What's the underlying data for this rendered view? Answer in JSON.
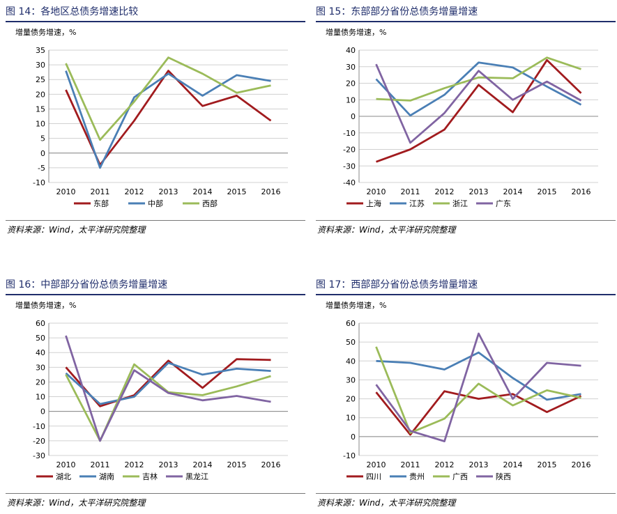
{
  "chart_data": [
    {
      "type": "line",
      "panel_title": "图 14：各地区总债务增速比较",
      "ylabel": "增量债务增速，%",
      "source": "资料来源：Wind，太平洋研究院整理",
      "x": [
        "2010",
        "2011",
        "2012",
        "2013",
        "2014",
        "2015",
        "2016"
      ],
      "ylim": [
        -10,
        35
      ],
      "yticks": [
        -10,
        -5,
        0,
        5,
        10,
        15,
        20,
        25,
        30,
        35
      ],
      "grid": true,
      "series": [
        {
          "name": "东部",
          "color": "#a11b1e",
          "values": [
            21.5,
            -4,
            11,
            28,
            16,
            19.5,
            11
          ]
        },
        {
          "name": "中部",
          "color": "#4a7fb5",
          "values": [
            28,
            -5,
            19,
            27,
            19.5,
            26.5,
            24.5
          ]
        },
        {
          "name": "西部",
          "color": "#9bbb59",
          "values": [
            30.5,
            4.5,
            17.5,
            32.5,
            27,
            20.5,
            23
          ]
        }
      ]
    },
    {
      "type": "line",
      "panel_title": "图 15：东部部分省份总债务增量增速",
      "ylabel": "增量债务增速，%",
      "source": "资料来源：Wind，太平洋研究院整理",
      "x": [
        "2010",
        "2011",
        "2012",
        "2013",
        "2014",
        "2015",
        "2016"
      ],
      "ylim": [
        -40,
        40
      ],
      "yticks": [
        -40,
        -30,
        -20,
        -10,
        0,
        10,
        20,
        30,
        40
      ],
      "grid": true,
      "series": [
        {
          "name": "上海",
          "color": "#a11b1e",
          "values": [
            -27.5,
            -20,
            -8,
            19,
            2.5,
            34,
            14
          ]
        },
        {
          "name": "江苏",
          "color": "#4a7fb5",
          "values": [
            22.5,
            0.5,
            13,
            32.5,
            29.5,
            18,
            7
          ]
        },
        {
          "name": "浙江",
          "color": "#9bbb59",
          "values": [
            10.5,
            9.5,
            17,
            23.5,
            23,
            35.5,
            28.5
          ]
        },
        {
          "name": "广东",
          "color": "#8064a2",
          "values": [
            31.5,
            -16,
            2,
            27.5,
            10,
            21,
            9.5
          ]
        }
      ]
    },
    {
      "type": "line",
      "panel_title": "图 16：中部部分省份总债务增量增速",
      "ylabel": "增量债务增速，%",
      "source": "资料来源：Wind，太平洋研究院整理",
      "x": [
        "2010",
        "2011",
        "2012",
        "2013",
        "2014",
        "2015",
        "2016"
      ],
      "ylim": [
        -30,
        60
      ],
      "yticks": [
        -30,
        -20,
        -10,
        0,
        10,
        20,
        30,
        40,
        50,
        60
      ],
      "grid": true,
      "series": [
        {
          "name": "湖北",
          "color": "#a11b1e",
          "values": [
            30,
            3.5,
            11,
            34.5,
            16,
            35.5,
            35
          ]
        },
        {
          "name": "湖南",
          "color": "#4a7fb5",
          "values": [
            26,
            5,
            10,
            33,
            25,
            29,
            27.5
          ]
        },
        {
          "name": "吉林",
          "color": "#9bbb59",
          "values": [
            25,
            -20,
            32,
            13,
            11,
            17,
            24
          ]
        },
        {
          "name": "黑龙江",
          "color": "#8064a2",
          "values": [
            51.5,
            -20,
            28,
            12.5,
            7.5,
            10.5,
            6.5
          ]
        }
      ]
    },
    {
      "type": "line",
      "panel_title": "图 17：西部部分省份总债务增量增速",
      "ylabel": "增量债务增速，%",
      "source": "资料来源：Wind，太平洋研究院整理",
      "x": [
        "2010",
        "2011",
        "2012",
        "2013",
        "2014",
        "2015",
        "2016"
      ],
      "ylim": [
        -10,
        60
      ],
      "yticks": [
        -10,
        0,
        10,
        20,
        30,
        40,
        50,
        60
      ],
      "grid": true,
      "series": [
        {
          "name": "四川",
          "color": "#a11b1e",
          "values": [
            23.5,
            1,
            24,
            20,
            22.5,
            13,
            21.5
          ]
        },
        {
          "name": "贵州",
          "color": "#4a7fb5",
          "values": [
            40,
            39,
            35.5,
            44.5,
            31,
            19.5,
            22.5
          ]
        },
        {
          "name": "广西",
          "color": "#9bbb59",
          "values": [
            47.5,
            2,
            9.5,
            28,
            16.5,
            24.5,
            20.5
          ]
        },
        {
          "name": "陕西",
          "color": "#8064a2",
          "values": [
            27.5,
            3,
            -2.5,
            54.5,
            20,
            39,
            37.5
          ]
        }
      ]
    }
  ]
}
